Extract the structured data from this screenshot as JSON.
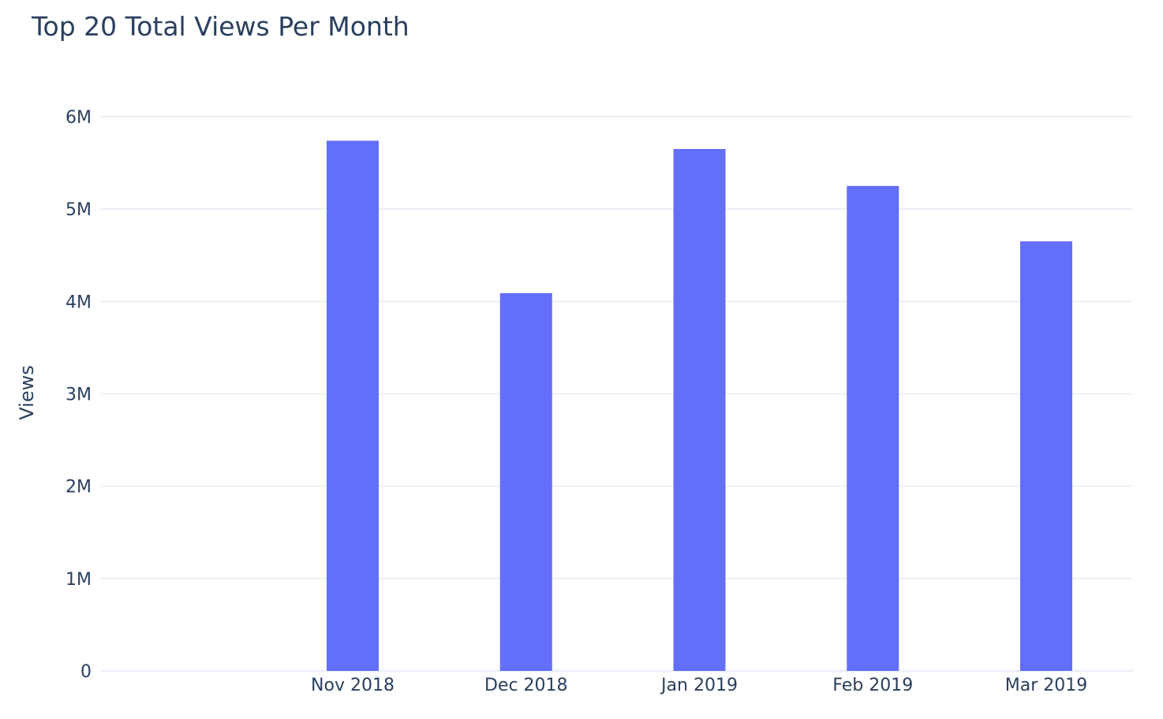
{
  "chart_data": {
    "type": "bar",
    "title": "Top 20 Total Views Per Month",
    "xlabel": "",
    "ylabel": "Views",
    "categories": [
      "Nov 2018",
      "Dec 2018",
      "Jan 2019",
      "Feb 2019",
      "Mar 2019"
    ],
    "values": [
      5740000,
      4090000,
      5650000,
      5250000,
      4650000
    ],
    "ylim": [
      0,
      6000000
    ],
    "yticks": [
      0,
      1000000,
      2000000,
      3000000,
      4000000,
      5000000,
      6000000
    ],
    "ytick_labels": [
      "0",
      "1M",
      "2M",
      "3M",
      "4M",
      "5M",
      "6M"
    ],
    "bar_color": "#636efa",
    "grid": true,
    "legend": "none"
  }
}
